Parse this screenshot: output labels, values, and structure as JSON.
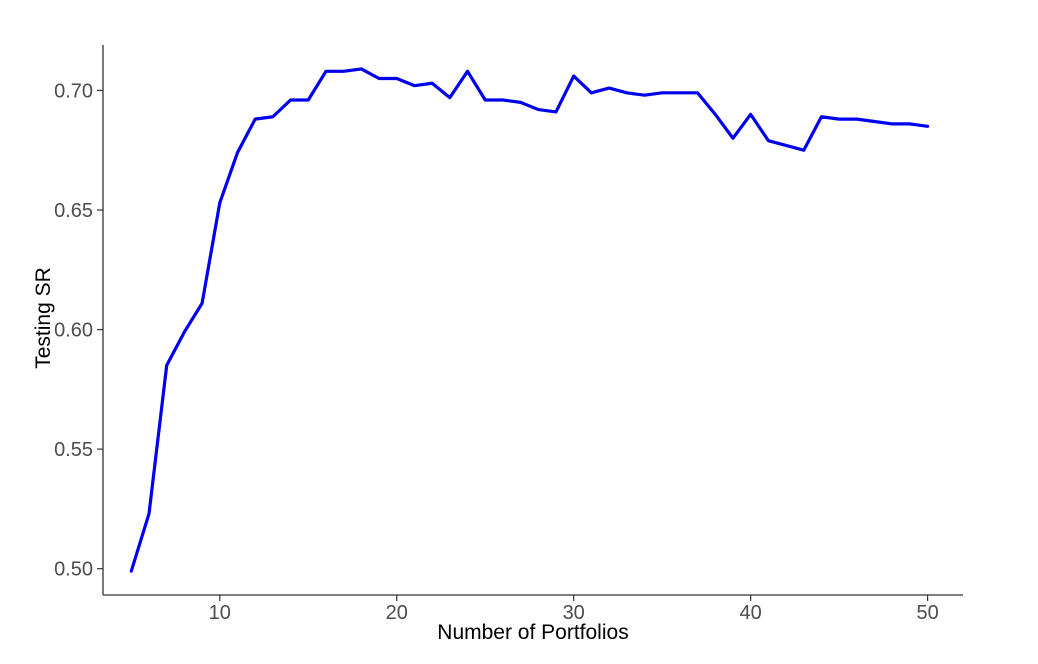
{
  "chart_data": {
    "type": "line",
    "xlabel": "Number of Portfolios",
    "ylabel": "Testing SR",
    "xlim": [
      3.4,
      52
    ],
    "ylim": [
      0.489,
      0.719
    ],
    "x_ticks": [
      10,
      20,
      30,
      40,
      50
    ],
    "x_tick_labels": [
      "10",
      "20",
      "30",
      "40",
      "50"
    ],
    "y_ticks": [
      0.5,
      0.55,
      0.6,
      0.65,
      0.7
    ],
    "y_tick_labels": [
      "0.50",
      "0.55",
      "0.60",
      "0.65",
      "0.70"
    ],
    "grid": false,
    "series": [
      {
        "color": "#0000ee",
        "x": [
          5,
          6,
          7,
          8,
          9,
          10,
          11,
          12,
          13,
          14,
          15,
          16,
          17,
          18,
          19,
          20,
          21,
          22,
          23,
          24,
          25,
          26,
          27,
          28,
          29,
          30,
          31,
          32,
          33,
          34,
          35,
          36,
          37,
          38,
          39,
          40,
          41,
          42,
          43,
          44,
          45,
          46,
          47,
          48,
          49,
          50
        ],
        "y": [
          0.499,
          0.523,
          0.585,
          0.599,
          0.611,
          0.653,
          0.674,
          0.688,
          0.689,
          0.696,
          0.696,
          0.708,
          0.708,
          0.709,
          0.705,
          0.705,
          0.702,
          0.703,
          0.697,
          0.708,
          0.696,
          0.696,
          0.695,
          0.692,
          0.691,
          0.706,
          0.699,
          0.701,
          0.699,
          0.698,
          0.699,
          0.699,
          0.699,
          0.69,
          0.68,
          0.69,
          0.679,
          0.677,
          0.675,
          0.689,
          0.688,
          0.688,
          0.687,
          0.686,
          0.686,
          0.685
        ]
      }
    ]
  }
}
